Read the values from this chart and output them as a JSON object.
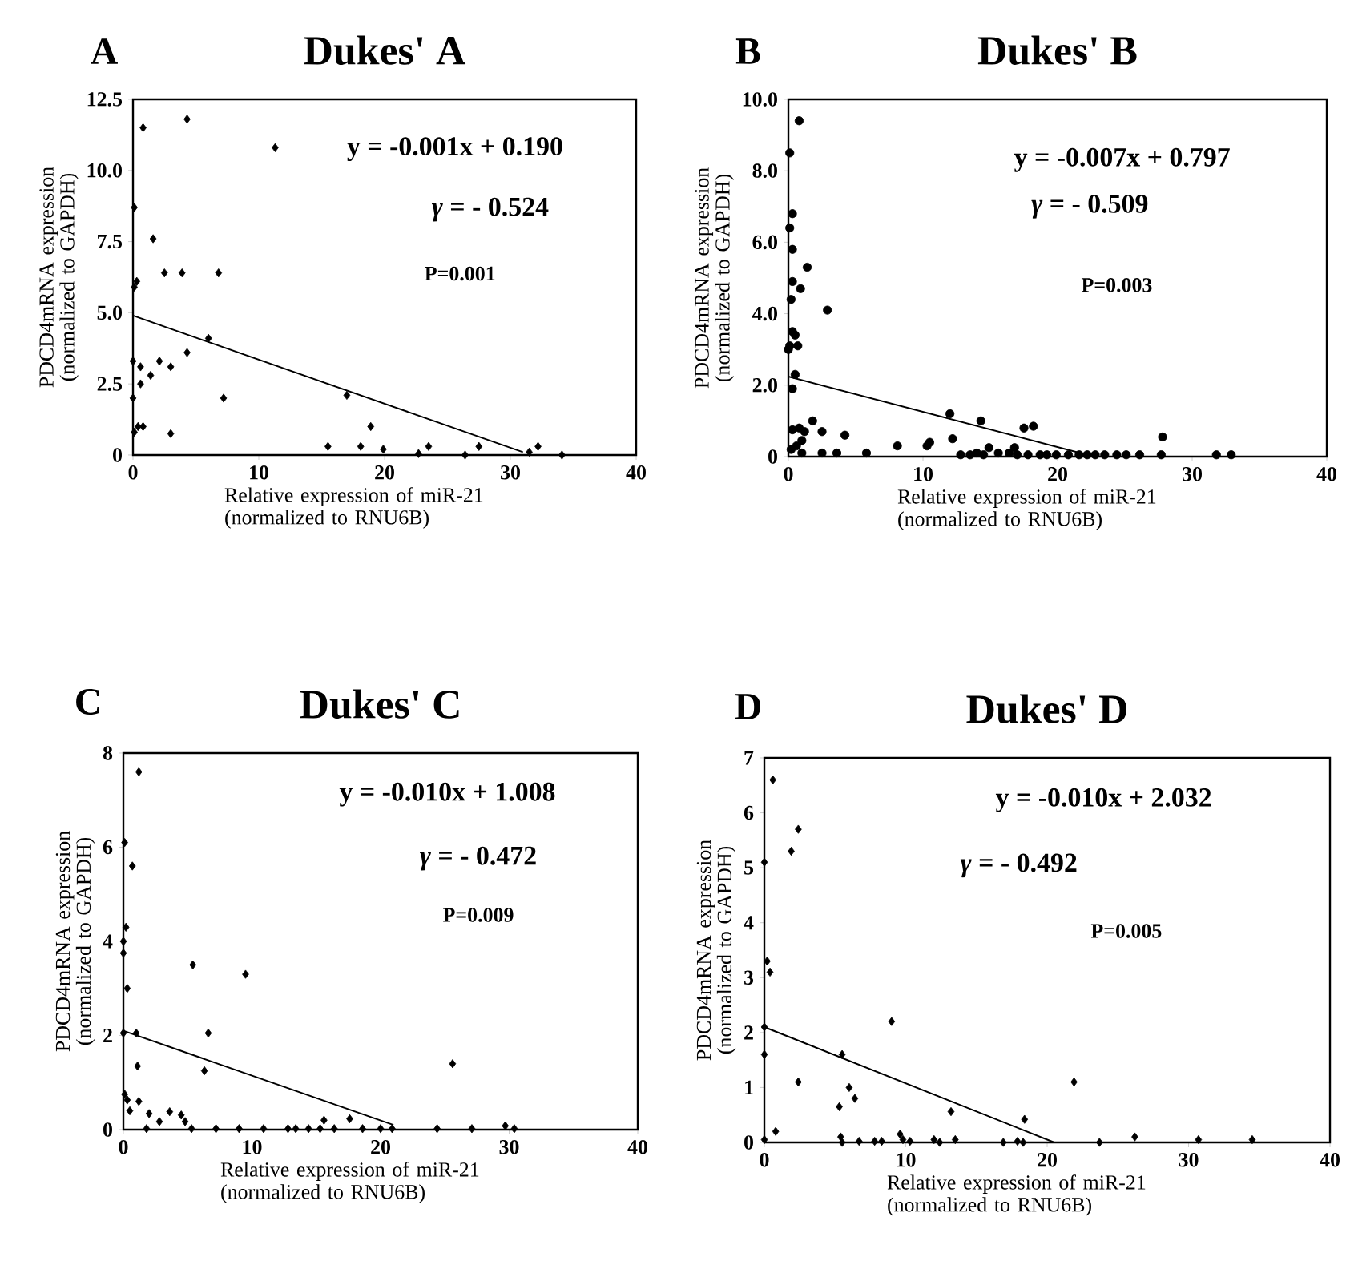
{
  "chart_data": [
    {
      "type": "scatter",
      "title": "Dukes' A",
      "xlabel": "Relative expression of miR-21 (normalized to RNU6B)",
      "ylabel": "PDCD4mRNA expression (normalized to GAPDH)",
      "annotations": [
        "A",
        "y = -0.001x + 0.190",
        "*γ* = - 0.524",
        "P=0.001"
      ],
      "xlim": [
        0,
        40
      ],
      "ylim": [
        0,
        12.5
      ],
      "xticks": [
        0,
        10,
        20,
        30,
        40
      ],
      "yticks": [
        0,
        {
          "value": 2.5,
          "label": "2.5"
        },
        {
          "value": 5,
          "label": "5.0"
        },
        {
          "value": 7.5,
          "label": "7.5"
        },
        {
          "value": 10,
          "label": "10.0"
        },
        {
          "value": 12.5,
          "label": "12.5"
        }
      ],
      "grid": false,
      "series": [
        {
          "type": "scatter",
          "marker": "diamond",
          "color": "#000000",
          "x": [
            0.8,
            4.3,
            11.3,
            0.1,
            1.6,
            2.5,
            3.9,
            6.8,
            0.3,
            0.1,
            6.0,
            4.3,
            2.1,
            3.0,
            1.4,
            0.6,
            0,
            0.6,
            0,
            7.2,
            17.0,
            0.4,
            0.8,
            0.1,
            3.0,
            18.9,
            15.5,
            18.1,
            19.9,
            22.7,
            23.5,
            26.4,
            27.5,
            31.5,
            32.2,
            34.1
          ],
          "values": [
            11.5,
            11.8,
            10.8,
            8.7,
            7.6,
            6.4,
            6.4,
            6.4,
            6.1,
            5.9,
            4.1,
            3.6,
            3.3,
            3.1,
            2.8,
            3.1,
            3.3,
            2.5,
            2.0,
            2.0,
            2.1,
            1.0,
            1.0,
            0.8,
            0.75,
            1.0,
            0.3,
            0.3,
            0.2,
            0.05,
            0.3,
            0.0,
            0.3,
            0.1,
            0.3,
            0.0
          ]
        },
        {
          "type": "line",
          "marker": "none",
          "color": "#000000",
          "x": [
            0,
            31
          ],
          "values": [
            4.9,
            0.1
          ]
        }
      ]
    },
    {
      "type": "scatter",
      "title": "Dukes' B",
      "xlabel": "Relative expression of miR-21 (normalized to RNU6B)",
      "ylabel": "PDCD4mRNA expression (normalized to GAPDH)",
      "annotations": [
        "B",
        "y = -0.007x + 0.797",
        "*γ* = - 0.509",
        "P=0.003"
      ],
      "xlim": [
        0,
        40
      ],
      "ylim": [
        0,
        10
      ],
      "xticks": [
        0,
        10,
        20,
        30,
        40
      ],
      "yticks": [
        0,
        {
          "value": 2,
          "label": "2.0"
        },
        {
          "value": 4,
          "label": "4.0"
        },
        {
          "value": 6,
          "label": "6.0"
        },
        {
          "value": 8,
          "label": "8.0"
        },
        {
          "value": 10,
          "label": "10.0"
        }
      ],
      "grid": false,
      "series": [
        {
          "type": "scatter",
          "marker": "circle",
          "color": "#000000",
          "x": [
            0.8,
            0.1,
            0.3,
            0.1,
            0.3,
            1.4,
            0.3,
            0.9,
            0.2,
            2.9,
            0.3,
            0.5,
            0.1,
            0.7,
            0.0,
            0.5,
            0.3,
            1.8,
            0.8,
            0.3,
            1.2,
            1.0,
            0.6,
            0.2,
            1.0,
            2.5,
            2.5,
            3.6,
            4.2,
            5.8,
            8.1,
            10.3,
            10.5,
            12.0,
            12.2,
            14.3,
            17.5,
            18.2,
            12.8,
            13.5,
            14.0,
            14.5,
            14.9,
            15.6,
            16.4,
            16.8,
            17.0,
            17.8,
            18.7,
            19.2,
            19.9,
            20.8,
            21.6,
            22.2,
            22.8,
            23.5,
            24.4,
            25.1,
            26.1,
            27.7,
            27.8,
            31.8,
            32.9
          ],
          "values": [
            9.4,
            8.5,
            6.8,
            6.4,
            5.8,
            5.3,
            4.9,
            4.7,
            4.4,
            4.1,
            3.5,
            3.4,
            3.1,
            3.1,
            3.0,
            2.3,
            1.9,
            1.0,
            0.8,
            0.75,
            0.7,
            0.45,
            0.3,
            0.2,
            0.1,
            0.7,
            0.1,
            0.1,
            0.6,
            0.1,
            0.3,
            0.3,
            0.4,
            1.2,
            0.5,
            1.0,
            0.8,
            0.85,
            0.05,
            0.05,
            0.1,
            0.05,
            0.25,
            0.1,
            0.1,
            0.25,
            0.05,
            0.05,
            0.05,
            0.05,
            0.05,
            0.05,
            0.05,
            0.05,
            0.05,
            0.05,
            0.05,
            0.05,
            0.05,
            0.05,
            0.55,
            0.05,
            0.05
          ]
        },
        {
          "type": "line",
          "marker": "none",
          "color": "#000000",
          "x": [
            0,
            22.2
          ],
          "values": [
            2.24,
            0.05
          ]
        }
      ]
    },
    {
      "type": "scatter",
      "title": "Dukes' C",
      "xlabel": "Relative expression of miR-21 (normalized to RNU6B)",
      "ylabel": "PDCD4mRNA expression (normalized to GAPDH)",
      "annotations": [
        "C",
        "y = -0.010x + 1.008",
        "*γ* = - 0.472",
        "P=0.009"
      ],
      "xlim": [
        0,
        40
      ],
      "ylim": [
        0,
        8
      ],
      "xticks": [
        0,
        10,
        20,
        30,
        40
      ],
      "yticks": [
        0,
        2,
        4,
        6,
        8
      ],
      "grid": false,
      "series": [
        {
          "type": "scatter",
          "marker": "diamond",
          "color": "#000000",
          "x": [
            1.2,
            0.1,
            0.7,
            0.2,
            0,
            0,
            0.3,
            5.4,
            9.5,
            0,
            1.0,
            6.6,
            1.1,
            6.3,
            25.6,
            0.1,
            0.3,
            1.2,
            2.0,
            0.5,
            3.6,
            2.8,
            4.5,
            4.8,
            1.8,
            5.3,
            7.2,
            9.0,
            10.9,
            12.8,
            13.4,
            14.4,
            15.3,
            15.6,
            16.4,
            17.6,
            18.6,
            20.0,
            20.9,
            24.4,
            27.1,
            29.7,
            30.4
          ],
          "values": [
            7.6,
            6.1,
            5.6,
            4.3,
            4.0,
            3.75,
            3.0,
            3.5,
            3.3,
            2.05,
            2.05,
            2.05,
            1.35,
            1.25,
            1.4,
            0.75,
            0.63,
            0.6,
            0.34,
            0.4,
            0.38,
            0.17,
            0.31,
            0.17,
            0.02,
            0.02,
            0.02,
            0.02,
            0.02,
            0.02,
            0.02,
            0.02,
            0.02,
            0.2,
            0.02,
            0.23,
            0.02,
            0.02,
            0.02,
            0.02,
            0.02,
            0.08,
            0.02
          ]
        },
        {
          "type": "line",
          "marker": "none",
          "color": "#000000",
          "x": [
            0,
            21
          ],
          "values": [
            2.1,
            0.1
          ]
        }
      ]
    },
    {
      "type": "scatter",
      "title": "Dukes' D",
      "xlabel": "Relative expression of miR-21 (normalized to RNU6B)",
      "ylabel": "PDCD4mRNA expression (normalized to GAPDH)",
      "annotations": [
        "D",
        "y = -0.010x + 2.032",
        "*γ* = - 0.492",
        "P=0.005"
      ],
      "xlim": [
        0,
        40
      ],
      "ylim": [
        0,
        7
      ],
      "xticks": [
        0,
        10,
        20,
        30,
        40
      ],
      "yticks": [
        0,
        1,
        2,
        3,
        4,
        5,
        6,
        7
      ],
      "grid": false,
      "series": [
        {
          "type": "scatter",
          "marker": "diamond",
          "color": "#000000",
          "x": [
            0.6,
            2.4,
            1.9,
            0,
            0.2,
            0.4,
            0,
            0,
            9.0,
            5.5,
            2.4,
            6.0,
            6.4,
            5.3,
            21.9,
            13.2,
            18.4,
            0.8,
            0,
            5.4,
            5.5,
            6.7,
            7.8,
            8.3,
            9.6,
            9.8,
            10.3,
            12.0,
            12.4,
            13.5,
            16.9,
            17.9,
            18.3,
            26.2,
            23.7,
            30.7,
            34.5
          ],
          "values": [
            6.6,
            5.7,
            5.3,
            5.1,
            3.3,
            3.1,
            2.1,
            1.6,
            2.2,
            1.6,
            1.1,
            1.0,
            0.8,
            0.65,
            1.1,
            0.56,
            0.42,
            0.2,
            0.05,
            0.1,
            0.0,
            0.02,
            0.02,
            0.02,
            0.15,
            0.05,
            0.02,
            0.05,
            0.0,
            0.05,
            0.0,
            0.02,
            0.0,
            0.1,
            0.0,
            0.05,
            0.05
          ]
        },
        {
          "type": "line",
          "marker": "none",
          "color": "#000000",
          "x": [
            0,
            20.5
          ],
          "values": [
            2.1,
            0.0
          ]
        }
      ]
    }
  ]
}
